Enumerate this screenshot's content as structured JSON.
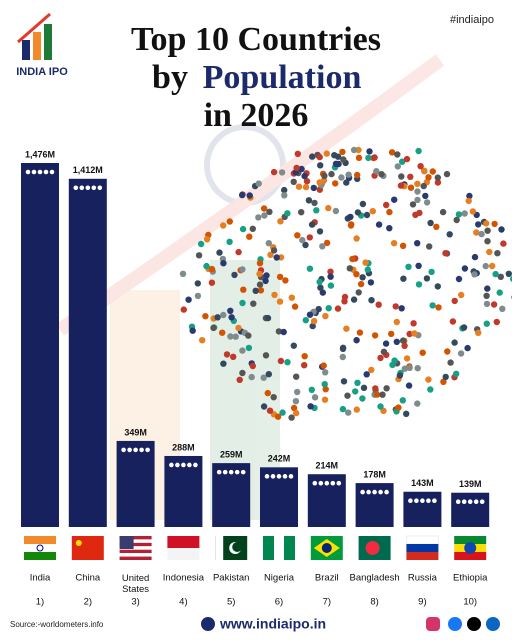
{
  "brand": "INDIA IPO",
  "hashtag": "#indiaipo",
  "chart_data": {
    "type": "bar",
    "title": [
      "Top 10 Countries",
      "by",
      "Population",
      "in 2026"
    ],
    "categories": [
      "India",
      "China",
      "United States",
      "Indonesia",
      "Pakistan",
      "Nigeria",
      "Brazil",
      "Bangladesh",
      "Russia",
      "Ethiopia"
    ],
    "ranks": [
      "1)",
      "2)",
      "3)",
      "4)",
      "5)",
      "6)",
      "7)",
      "8)",
      "9)",
      "10)"
    ],
    "values": [
      1476,
      1412,
      349,
      288,
      259,
      242,
      214,
      178,
      143,
      139
    ],
    "value_labels": [
      "1,476M",
      "1,412M",
      "349M",
      "288M",
      "259M",
      "242M",
      "214M",
      "178M",
      "143M",
      "139M"
    ],
    "color": "#16215e"
  },
  "footer": {
    "source": "Source:-worldometers.info",
    "website": "www.indiaipo.in"
  }
}
